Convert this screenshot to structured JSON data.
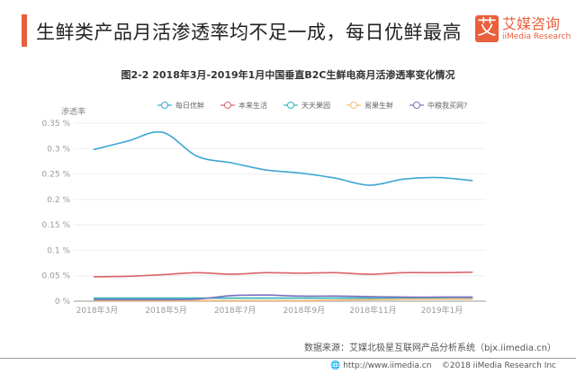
{
  "header": {
    "title": "生鲜类产品月活渗透率均不足一成，每日优鲜最高",
    "logo_cn": "艾媒咨询",
    "logo_en": "iiMedia Research",
    "logo_mark": "艾"
  },
  "footer": {
    "source": "数据来源：艾媒北极星互联网产品分析系统（bjx.iimedia.cn）",
    "url": "http://www.iimedia.cn",
    "copyright": "©2018  iiMedia Research  Inc"
  },
  "chart_data": {
    "type": "line",
    "title": "图2-2 2018年3月-2019年1月中国垂直B2C生鲜电商月活渗透率变化情况",
    "ylabel": "渗透率",
    "ylim": [
      0,
      0.35
    ],
    "yticks": [
      "0 %",
      "0.05 %",
      "0.1 %",
      "0.15 %",
      "0.2 %",
      "0.25 %",
      "0.3 %",
      "0.35 %"
    ],
    "x": [
      "2018-03",
      "2018-04",
      "2018-05",
      "2018-06",
      "2018-07",
      "2018-08",
      "2018-09",
      "2018-10",
      "2018-11",
      "2018-12",
      "2019-01",
      "2019-02"
    ],
    "xtick_labels": [
      "2018年3月",
      "2018年5月",
      "2018年7月",
      "2018年9月",
      "2018年11月",
      "2019年1月"
    ],
    "grid": true,
    "legend": "top",
    "series": [
      {
        "name": "每日优鲜",
        "color": "#3fa7d6",
        "values": [
          0.298,
          0.315,
          0.332,
          0.285,
          0.272,
          0.258,
          0.252,
          0.242,
          0.228,
          0.24,
          0.243,
          0.237
        ]
      },
      {
        "name": "本来生活",
        "color": "#d9626a",
        "values": [
          0.048,
          0.049,
          0.052,
          0.056,
          0.053,
          0.056,
          0.055,
          0.056,
          0.053,
          0.056,
          0.056,
          0.057
        ]
      },
      {
        "name": "天天果园",
        "color": "#2cb5b5",
        "values": [
          0.006,
          0.006,
          0.006,
          0.006,
          0.006,
          0.006,
          0.006,
          0.006,
          0.006,
          0.006,
          0.007,
          0.007
        ]
      },
      {
        "name": "易果生鲜",
        "color": "#f5b97a",
        "values": [
          0.001,
          0.001,
          0.001,
          0.001,
          0.001,
          0.001,
          0.001,
          0.002,
          0.003,
          0.004,
          0.004,
          0.004
        ]
      },
      {
        "name": "中粮我买网?",
        "color": "#7b6fbf",
        "values": [
          0.003,
          0.003,
          0.003,
          0.004,
          0.011,
          0.012,
          0.01,
          0.01,
          0.009,
          0.008,
          0.008,
          0.008
        ]
      }
    ]
  }
}
